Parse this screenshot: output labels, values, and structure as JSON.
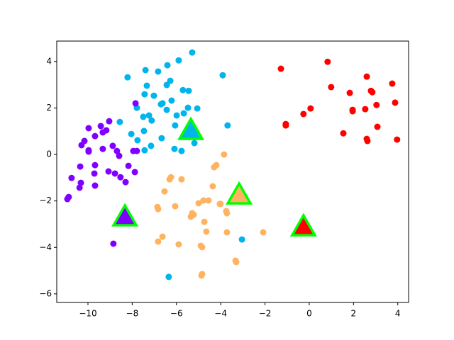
{
  "chart_data": {
    "type": "scatter",
    "xlim": [
      -11.41,
      4.49
    ],
    "ylim": [
      -6.37,
      4.88
    ],
    "xticks": [
      {
        "value": -10,
        "label": "−10"
      },
      {
        "value": -8,
        "label": "−8"
      },
      {
        "value": -6,
        "label": "−6"
      },
      {
        "value": -4,
        "label": "−4"
      },
      {
        "value": -2,
        "label": "−2"
      },
      0,
      2,
      4
    ],
    "yticks": [
      {
        "value": -6,
        "label": "−6"
      },
      {
        "value": -4,
        "label": "−4"
      },
      {
        "value": -2,
        "label": "−2"
      },
      0,
      2,
      4
    ],
    "grid": false,
    "series": [
      {
        "color": "#ff0000",
        "marker": "circle",
        "x": [
          -1.28,
          0.83,
          0.99,
          -1.06,
          -1.06,
          -0.26,
          0.06,
          1.83,
          1.96,
          1.96,
          2.6,
          2.79,
          2.85,
          3.04,
          2.53,
          3.08,
          1.54,
          2.6,
          2.63,
          3.75,
          3.88,
          3.97
        ],
        "values": [
          3.69,
          3.99,
          2.9,
          1.31,
          1.25,
          1.74,
          1.98,
          2.65,
          1.92,
          1.86,
          3.35,
          2.74,
          2.68,
          2.13,
          1.95,
          1.19,
          0.91,
          0.67,
          0.58,
          3.05,
          2.23,
          0.64
        ]
      },
      {
        "color": "#00b5eb",
        "marker": "circle",
        "x": [
          -5.29,
          -5.9,
          -6.41,
          -7.4,
          -6.83,
          -8.21,
          -3.91,
          -6.28,
          -7.34,
          -6.44,
          -5.71,
          -5.45,
          -7.44,
          -7.02,
          -6.22,
          -6.63,
          -6.7,
          -7.79,
          -5.48,
          -5.06,
          -6.44,
          -5.67,
          -5.99,
          -7.24,
          -7.5,
          -7.12,
          -8.56,
          -6.06,
          -3.69,
          -7.47,
          -8.04,
          -7.76,
          -6.67,
          -5.19,
          -7.15,
          -6.09,
          -7.44,
          -5.77,
          -3.04,
          -6.35
        ],
        "values": [
          4.39,
          4.05,
          3.84,
          3.63,
          3.57,
          3.32,
          3.41,
          3.17,
          2.96,
          2.99,
          2.77,
          2.74,
          2.59,
          2.53,
          2.32,
          2.2,
          2.16,
          2.01,
          2.01,
          1.98,
          1.92,
          1.77,
          1.68,
          1.68,
          1.62,
          1.46,
          1.4,
          1.25,
          1.25,
          1.01,
          0.88,
          0.61,
          0.7,
          0.49,
          0.37,
          0.24,
          0.18,
          0.15,
          -3.66,
          -5.27
        ]
      },
      {
        "color": "#8000ff",
        "marker": "circle",
        "x": [
          -7.85,
          -9.04,
          -9.42,
          -9.97,
          -9.17,
          -9.33,
          -9.68,
          -10.16,
          -10.29,
          -8.88,
          -9.33,
          -9.97,
          -9.97,
          -7.95,
          -7.79,
          -8.69,
          -8.59,
          -8.17,
          -10.35,
          -9.68,
          -7.88,
          -9.07,
          -8.78,
          -9.71,
          -10.74,
          -8.53,
          -8.3,
          -10.32,
          -9.68,
          -10.38,
          -10.87,
          -10.93,
          -8.85
        ],
        "values": [
          2.2,
          1.43,
          1.22,
          1.13,
          1.04,
          0.95,
          0.79,
          0.58,
          0.4,
          0.37,
          0.24,
          0.18,
          0.12,
          0.15,
          0.15,
          0.15,
          -0.06,
          -0.49,
          -0.52,
          -0.46,
          -0.76,
          -0.73,
          -0.82,
          -0.82,
          -1.01,
          -0.98,
          -1.19,
          -1.22,
          -1.34,
          -1.43,
          -1.83,
          -1.92,
          -3.84
        ]
      },
      {
        "color": "#ffb360",
        "marker": "circle",
        "x": [
          -3.85,
          -4.2,
          -4.3,
          -6.25,
          -6.31,
          -5.77,
          -4.36,
          -6.54,
          -3.11,
          -4.78,
          -4.55,
          -4.04,
          -4.01,
          -5.0,
          -6.86,
          -6.06,
          -6.83,
          -3.75,
          -3.72,
          -5.29,
          -5.22,
          -5.35,
          -4.74,
          -4.65,
          -3.72,
          -2.08,
          -6.63,
          -6.83,
          -5.9,
          -4.9,
          -4.84,
          -3.33,
          -3.3,
          -4.84,
          -4.87
        ],
        "values": [
          0.0,
          -0.46,
          -0.55,
          -0.98,
          -1.07,
          -1.07,
          -1.37,
          -1.59,
          -1.74,
          -1.98,
          -1.98,
          -2.13,
          -2.13,
          -2.1,
          -2.26,
          -2.23,
          -2.35,
          -2.44,
          -2.53,
          -2.53,
          -2.59,
          -2.68,
          -2.9,
          -3.32,
          -3.35,
          -3.35,
          -3.54,
          -3.75,
          -3.87,
          -3.93,
          -3.99,
          -4.57,
          -4.63,
          -5.15,
          -5.21
        ]
      },
      {
        "color": "#00b5eb",
        "edgecolor": "#00ff00",
        "marker": "triangle",
        "x": [
          -5.35
        ],
        "values": [
          1.04
        ]
      },
      {
        "color": "#ffb360",
        "edgecolor": "#00ff00",
        "marker": "triangle",
        "x": [
          -3.17
        ],
        "values": [
          -1.74
        ]
      },
      {
        "color": "#8000ff",
        "edgecolor": "#00ff00",
        "marker": "triangle",
        "x": [
          -8.33
        ],
        "values": [
          -2.68
        ]
      },
      {
        "color": "#ff0000",
        "edgecolor": "#00ff00",
        "marker": "triangle",
        "x": [
          -0.26
        ],
        "values": [
          -3.11
        ]
      }
    ]
  }
}
